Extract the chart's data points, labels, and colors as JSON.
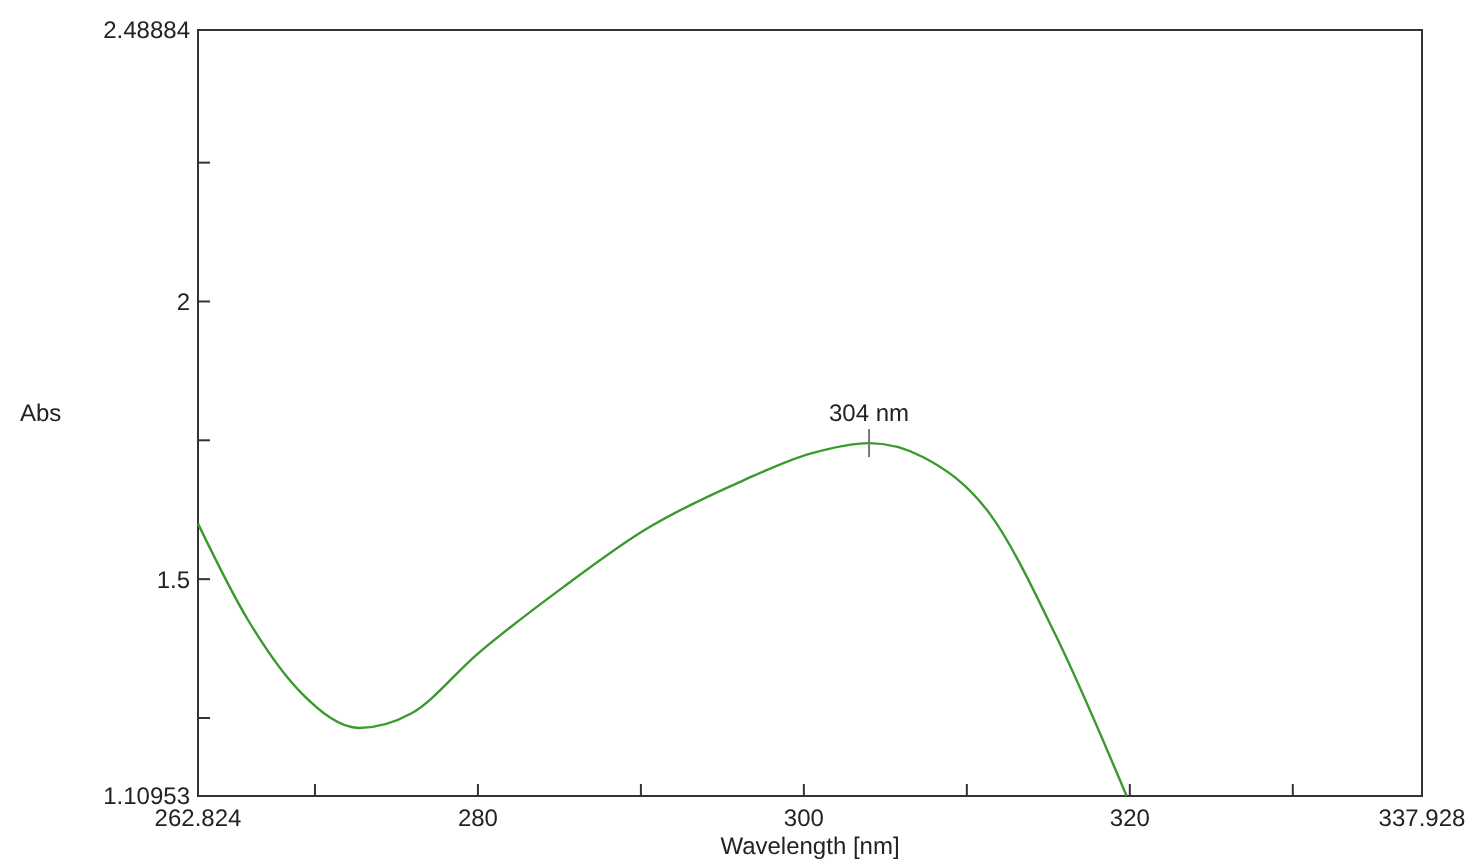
{
  "chart_data": {
    "type": "line",
    "xlabel": "Wavelength [nm]",
    "ylabel": "Abs",
    "xlim": [
      262.824,
      337.928
    ],
    "ylim": [
      1.10953,
      2.48884
    ],
    "xticks": [
      {
        "value": 262.824,
        "label": "262.824"
      },
      {
        "value": 270,
        "label": null
      },
      280,
      {
        "value": 290,
        "label": null
      },
      300,
      {
        "value": 310,
        "label": null
      },
      320,
      {
        "value": 330,
        "label": null
      },
      {
        "value": 337.928,
        "label": "337.928"
      }
    ],
    "yticks": [
      {
        "value": 1.10953,
        "label": "1.10953"
      },
      {
        "value": 1.25,
        "label": null
      },
      1.5,
      {
        "value": 1.75,
        "label": null
      },
      2,
      {
        "value": 2.25,
        "label": null
      },
      {
        "value": 2.48884,
        "label": "2.48884"
      }
    ],
    "grid": false,
    "marker": "none",
    "line_style": "solid",
    "annotations": [
      {
        "text": "304 nm",
        "x": 304,
        "y": 1.745
      }
    ],
    "series": [
      {
        "color": "#3a9a2e",
        "x": [
          262.824,
          265.9,
          269.2,
          272.7,
          275.9,
          280.0,
          285.3,
          290.2,
          296.3,
          300.4,
          304.0,
          307.3,
          311.4,
          315.4,
          319.8
        ],
        "values": [
          1.6,
          1.426,
          1.294,
          1.232,
          1.258,
          1.366,
          1.487,
          1.588,
          1.678,
          1.726,
          1.745,
          1.72,
          1.618,
          1.402,
          1.11
        ]
      }
    ]
  }
}
